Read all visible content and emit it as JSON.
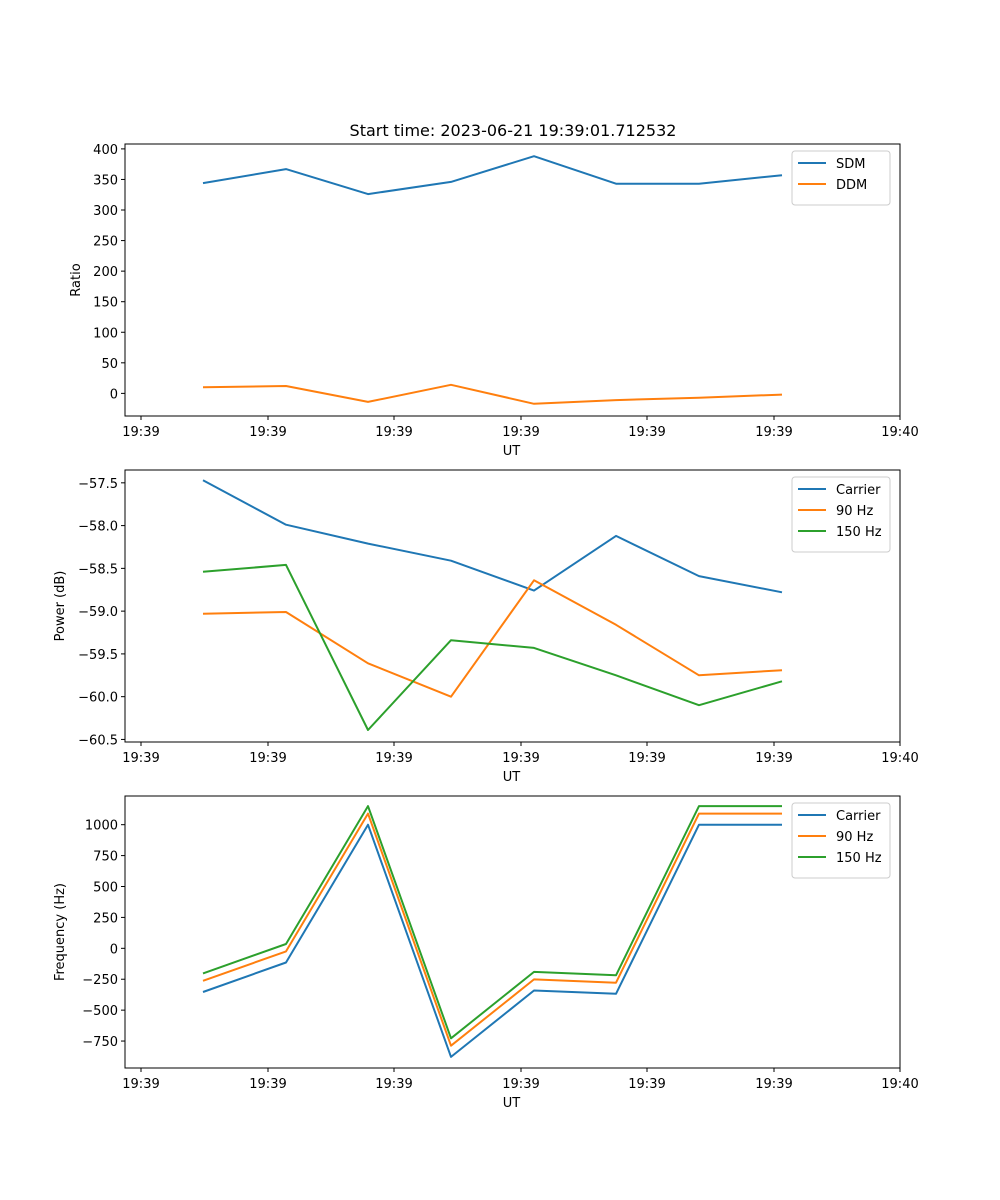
{
  "figure": {
    "title": "Start time: 2023-06-21 19:39:01.712532"
  },
  "chart_data": [
    {
      "type": "line",
      "title": "Start time: 2023-06-21 19:39:01.712532",
      "xlabel": "UT",
      "ylabel": "Ratio",
      "x_tick_labels": [
        "19:39",
        "19:39",
        "19:39",
        "19:39",
        "19:39",
        "19:39",
        "19:40"
      ],
      "y_ticks": [
        0,
        50,
        100,
        150,
        200,
        250,
        300,
        350,
        400
      ],
      "ylim": [
        -37,
        408
      ],
      "legend_position": "top-right",
      "grid": false,
      "series": [
        {
          "name": "SDM",
          "color": "#1f77b4",
          "values": [
            344,
            367,
            326,
            346,
            388,
            343,
            343,
            357
          ]
        },
        {
          "name": "DDM",
          "color": "#ff7f0e",
          "values": [
            10,
            12,
            -14,
            14,
            -17,
            -11,
            -7,
            -2
          ]
        }
      ]
    },
    {
      "type": "line",
      "xlabel": "UT",
      "ylabel": "Power (dB)",
      "x_tick_labels": [
        "19:39",
        "19:39",
        "19:39",
        "19:39",
        "19:39",
        "19:39",
        "19:40"
      ],
      "y_ticks": [
        -60.5,
        -60.0,
        -59.5,
        -59.0,
        -58.5,
        -58.0,
        -57.5
      ],
      "y_tick_labels": [
        "−60.5",
        "−60.0",
        "−59.5",
        "−59.0",
        "−58.5",
        "−58.0",
        "−57.5"
      ],
      "ylim": [
        -60.53,
        -57.35
      ],
      "legend_position": "top-right",
      "grid": false,
      "series": [
        {
          "name": "Carrier",
          "color": "#1f77b4",
          "values": [
            -57.47,
            -57.99,
            -58.21,
            -58.41,
            -58.76,
            -58.12,
            -58.59,
            -58.78
          ]
        },
        {
          "name": "90 Hz",
          "color": "#ff7f0e",
          "values": [
            -59.03,
            -59.01,
            -59.61,
            -60.0,
            -58.64,
            -59.16,
            -59.75,
            -59.69
          ]
        },
        {
          "name": "150 Hz",
          "color": "#2ca02c",
          "values": [
            -58.54,
            -58.46,
            -60.39,
            -59.34,
            -59.43,
            -59.75,
            -60.1,
            -59.82
          ]
        }
      ]
    },
    {
      "type": "line",
      "xlabel": "UT",
      "ylabel": "Frequency (Hz)",
      "x_tick_labels": [
        "19:39",
        "19:39",
        "19:39",
        "19:39",
        "19:39",
        "19:39",
        "19:40"
      ],
      "y_ticks": [
        -750,
        -500,
        -250,
        0,
        250,
        500,
        750,
        1000
      ],
      "y_tick_labels": [
        "−750",
        "−500",
        "−250",
        "0",
        "250",
        "500",
        "750",
        "1000"
      ],
      "ylim": [
        -968,
        1232
      ],
      "legend_position": "top-right",
      "grid": false,
      "series": [
        {
          "name": "Carrier",
          "color": "#1f77b4",
          "values": [
            -353,
            -115,
            1000,
            -878,
            -341,
            -368,
            1000,
            1000
          ]
        },
        {
          "name": "90 Hz",
          "color": "#ff7f0e",
          "values": [
            -263,
            -25,
            1090,
            -788,
            -251,
            -278,
            1090,
            1090
          ]
        },
        {
          "name": "150 Hz",
          "color": "#2ca02c",
          "values": [
            -203,
            35,
            1150,
            -728,
            -191,
            -218,
            1150,
            1150
          ]
        }
      ]
    }
  ]
}
